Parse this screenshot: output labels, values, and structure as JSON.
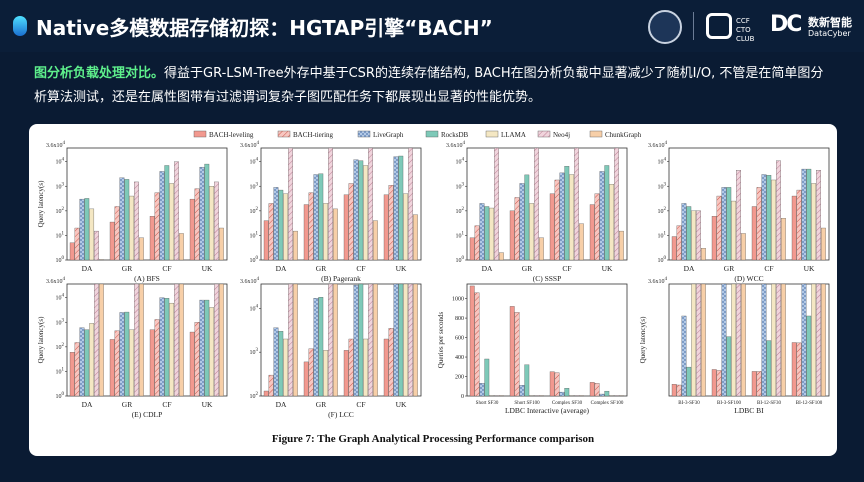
{
  "header": {
    "title": "Native多模数据存储初探：HGTAP引擎“BACH”",
    "logo_cto": "CCF CTO CLUB",
    "logo_brand_cn": "数新智能",
    "logo_brand_en": "DataCyber",
    "logo_brand_mark": "DC"
  },
  "description": {
    "highlight": "图分析负载处理对比。",
    "text": "得益于GR-LSM-Tree外存中基于CSR的连续存储结构, BACH在图分析负载中显著减少了随机I/O, 不管是在简单图分析算法测试，还是在属性图带有过滤谓词复杂子图匹配任务下都展现出显著的性能优势。"
  },
  "colors": {
    "background": "#0a1b33",
    "highlight": "#5ef08c"
  },
  "figure_caption": "Figure 7: The Graph Analytical Processing Performance comparison",
  "chart_data": {
    "legend": [
      {
        "name": "BACH-leveling",
        "color": "#f2998f",
        "hatch": "none"
      },
      {
        "name": "BACH-tiering",
        "color": "#f7c6c0",
        "hatch": "diag"
      },
      {
        "name": "LiveGraph",
        "color": "#b3c9e6",
        "hatch": "cross"
      },
      {
        "name": "RocksDB",
        "color": "#7ec9b8",
        "hatch": "none"
      },
      {
        "name": "LLAMA",
        "color": "#f4e7c3",
        "hatch": "none"
      },
      {
        "name": "Neo4j",
        "color": "#f0d4dc",
        "hatch": "diag"
      },
      {
        "name": "ChunkGraph",
        "color": "#f7cfa8",
        "hatch": "none"
      }
    ],
    "panels": [
      {
        "id": "bfs",
        "type": "bar",
        "scale": "log",
        "title": "(A) BFS",
        "ylabel": "Query latency(s)",
        "ylim": [
          1,
          36000
        ],
        "ytop_label": "3.6x10^4",
        "yticks": [
          "10^0",
          "10^1",
          "10^2",
          "10^3",
          "10^4"
        ],
        "categories": [
          "DA",
          "GR",
          "CF",
          "UK"
        ],
        "values": [
          [
            5,
            35,
            60,
            300
          ],
          [
            20,
            150,
            550,
            800
          ],
          [
            300,
            2200,
            4000,
            6000
          ],
          [
            320,
            1900,
            7000,
            8000
          ],
          [
            120,
            400,
            1300,
            1000
          ],
          [
            15,
            1500,
            10000,
            1500
          ],
          [
            1,
            8,
            12,
            20
          ]
        ]
      },
      {
        "id": "pagerank",
        "type": "bar",
        "scale": "log",
        "title": "(B) Pagerank",
        "ylabel": "",
        "ylim": [
          1,
          36000
        ],
        "ytop_label": "3.6x10^4",
        "yticks": [
          "10^0",
          "10^1",
          "10^2",
          "10^3",
          "10^4"
        ],
        "categories": [
          "DA",
          "GR",
          "CF",
          "UK"
        ],
        "values": [
          [
            40,
            180,
            450,
            450
          ],
          [
            200,
            550,
            1300,
            1100
          ],
          [
            900,
            3000,
            12000,
            16000
          ],
          [
            700,
            3200,
            11000,
            17000
          ],
          [
            500,
            200,
            7000,
            500
          ],
          [
            36000,
            36000,
            36000,
            36000
          ],
          [
            15,
            120,
            40,
            70
          ]
        ]
      },
      {
        "id": "sssp",
        "type": "bar",
        "scale": "log",
        "title": "(C) SSSP",
        "ylabel": "",
        "ylim": [
          1,
          36000
        ],
        "ytop_label": "3.6x10^4",
        "yticks": [
          "10^0",
          "10^1",
          "10^2",
          "10^3",
          "10^4"
        ],
        "categories": [
          "DA",
          "GR",
          "CF",
          "UK"
        ],
        "values": [
          [
            8,
            100,
            500,
            180
          ],
          [
            25,
            350,
            1800,
            500
          ],
          [
            200,
            1300,
            3500,
            4000
          ],
          [
            150,
            2900,
            6500,
            7000
          ],
          [
            130,
            200,
            3000,
            1200
          ],
          [
            36000,
            36000,
            36000,
            36000
          ],
          [
            2,
            8,
            30,
            15
          ]
        ]
      },
      {
        "id": "wcc",
        "type": "bar",
        "scale": "log",
        "title": "(D) WCC",
        "ylabel": "",
        "ylim": [
          1,
          36000
        ],
        "ytop_label": "3.6x10^4",
        "yticks": [
          "10^0",
          "10^1",
          "10^2",
          "10^3",
          "10^4"
        ],
        "categories": [
          "DA",
          "GR",
          "CF",
          "UK"
        ],
        "values": [
          [
            9,
            60,
            150,
            400
          ],
          [
            25,
            400,
            900,
            700
          ],
          [
            200,
            900,
            3000,
            5000
          ],
          [
            150,
            900,
            2800,
            5000
          ],
          [
            100,
            250,
            1800,
            1300
          ],
          [
            100,
            4500,
            11000,
            4500
          ],
          [
            3,
            12,
            50,
            20
          ]
        ]
      },
      {
        "id": "cdlp",
        "type": "bar",
        "scale": "log",
        "title": "(E) CDLP",
        "ylabel": "Query latency(s)",
        "ylim": [
          1,
          36000
        ],
        "ytop_label": "3.6x10^4",
        "yticks": [
          "10^0",
          "10^1",
          "10^2",
          "10^3",
          "10^4"
        ],
        "categories": [
          "DA",
          "GR",
          "CF",
          "UK"
        ],
        "values": [
          [
            60,
            200,
            500,
            400
          ],
          [
            150,
            450,
            1300,
            1000
          ],
          [
            600,
            2500,
            10000,
            8000
          ],
          [
            500,
            2600,
            9500,
            8000
          ],
          [
            900,
            500,
            6000,
            4000
          ],
          [
            36000,
            36000,
            36000,
            36000
          ],
          [
            36000,
            36000,
            36000,
            36000
          ]
        ]
      },
      {
        "id": "lcc",
        "type": "bar",
        "scale": "log",
        "title": "(F) LCC",
        "ylabel": "",
        "ylim": [
          100,
          36000
        ],
        "ytop_label": "3.6x10^4",
        "yticks": [
          "10^2",
          "10^3",
          "10^4"
        ],
        "categories": [
          "DA",
          "GR",
          "CF",
          "UK"
        ],
        "values": [
          [
            130,
            600,
            1100,
            2000
          ],
          [
            300,
            1200,
            2000,
            3500
          ],
          [
            3600,
            17000,
            34000,
            36000
          ],
          [
            3000,
            18000,
            36000,
            36000
          ],
          [
            2000,
            1100,
            2000,
            36000
          ],
          [
            36000,
            36000,
            36000,
            36000
          ],
          [
            36000,
            36000,
            36000,
            36000
          ]
        ]
      },
      {
        "id": "ldbc-interactive",
        "type": "bar",
        "scale": "linear",
        "title": "LDBC Interactive (average)",
        "ylabel": "Queries per seconds",
        "ylim": [
          0,
          1150
        ],
        "yticks": [
          "0",
          "200",
          "400",
          "600",
          "800",
          "1000"
        ],
        "categories": [
          "Short SF30",
          "Short SF100",
          "Complex SF30",
          "Complex SF100"
        ],
        "values": [
          [
            1130,
            920,
            250,
            140
          ],
          [
            1060,
            860,
            240,
            130
          ],
          [
            130,
            110,
            40,
            20
          ],
          [
            380,
            320,
            80,
            50
          ],
          [
            5,
            5,
            5,
            5
          ],
          [
            5,
            5,
            5,
            5
          ],
          [
            5,
            5,
            5,
            5
          ]
        ]
      },
      {
        "id": "ldbc-bi",
        "type": "bar",
        "scale": "log",
        "title": "LDBC BI",
        "ylabel": "Query latency(s)",
        "ylim": [
          1,
          36000
        ],
        "ytop_label": "3.6x10^4",
        "yticks": [],
        "categories": [
          "BI-3-SF30",
          "BI-3-SF100",
          "BI-12-SF30",
          "BI-12-SF100"
        ],
        "values": [
          [
            3,
            12,
            10,
            150
          ],
          [
            2.8,
            11,
            10,
            145
          ],
          [
            1800,
            36000,
            36000,
            36000
          ],
          [
            15,
            260,
            180,
            1800
          ],
          [
            36000,
            36000,
            36000,
            36000
          ],
          [
            36000,
            36000,
            36000,
            36000
          ],
          [
            36000,
            36000,
            36000,
            36000
          ]
        ]
      }
    ]
  }
}
